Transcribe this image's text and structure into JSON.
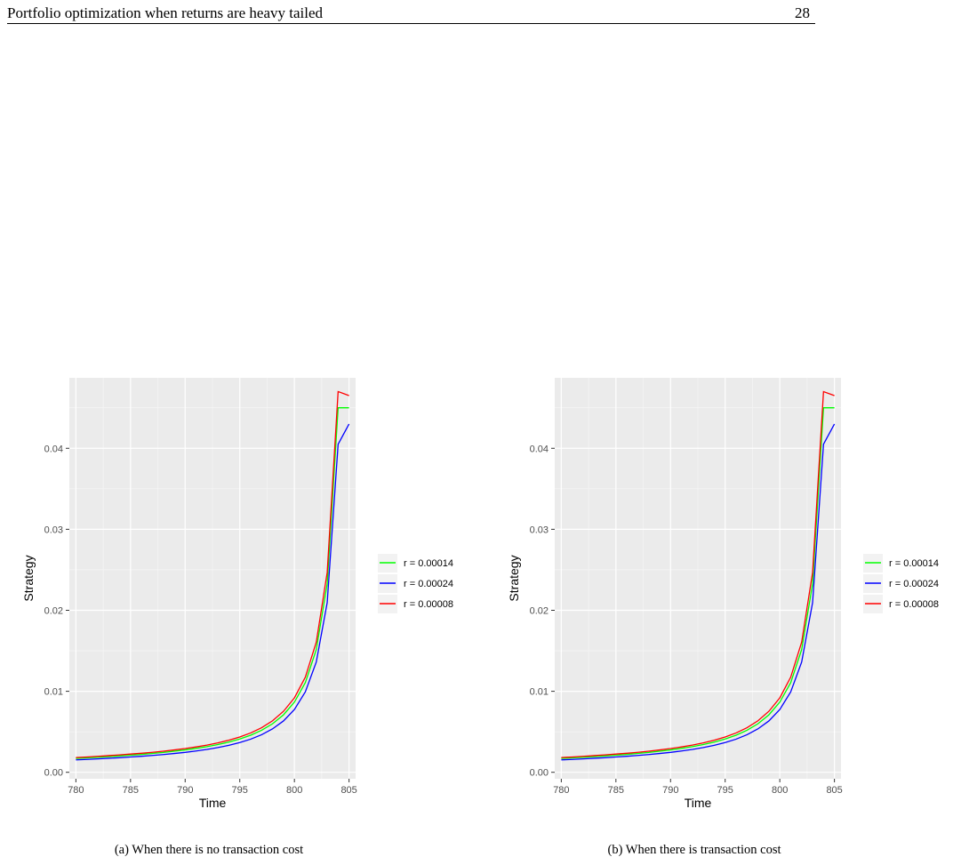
{
  "page": {
    "running_title": "Portfolio optimization when returns are heavy tailed",
    "page_number": "28"
  },
  "captions": [
    "(a) When there is no transaction cost",
    "(b) When there is transaction cost"
  ],
  "chart_data": [
    {
      "type": "line",
      "xlabel": "Time",
      "ylabel": "Strategy",
      "xlim": [
        779.4,
        805.6
      ],
      "ylim": [
        -0.0008,
        0.0487
      ],
      "xticks": [
        780,
        785,
        790,
        795,
        800,
        805
      ],
      "xtick_labels": [
        "780",
        "785",
        "790",
        "795",
        "800",
        "805"
      ],
      "yticks": [
        0.0,
        0.01,
        0.02,
        0.03,
        0.04
      ],
      "ytick_labels": [
        "0.00",
        "0.01",
        "0.02",
        "0.03",
        "0.04"
      ],
      "grid": true,
      "legend_position": "right",
      "x": [
        780,
        781,
        782,
        783,
        784,
        785,
        786,
        787,
        788,
        789,
        790,
        791,
        792,
        793,
        794,
        795,
        796,
        797,
        798,
        799,
        800,
        801,
        802,
        803,
        804,
        805
      ],
      "series": [
        {
          "name": "r = 0.00014",
          "color": "#00ff00",
          "values": [
            0.00171,
            0.00178,
            0.00185,
            0.00193,
            0.00202,
            0.00211,
            0.00221,
            0.00233,
            0.00245,
            0.0026,
            0.00276,
            0.00295,
            0.00317,
            0.00342,
            0.00373,
            0.00411,
            0.00458,
            0.00519,
            0.00599,
            0.00709,
            0.00866,
            0.01107,
            0.01515,
            0.02326,
            0.045,
            0.045
          ]
        },
        {
          "name": "r = 0.00024",
          "color": "#0000ff",
          "values": [
            0.00153,
            0.00159,
            0.00166,
            0.00173,
            0.0018,
            0.00189,
            0.00198,
            0.00208,
            0.00219,
            0.00232,
            0.00246,
            0.00263,
            0.00282,
            0.00305,
            0.00333,
            0.00367,
            0.00409,
            0.00464,
            0.00536,
            0.00634,
            0.00775,
            0.00993,
            0.01361,
            0.02094,
            0.0405,
            0.043
          ]
        },
        {
          "name": "r = 0.00008",
          "color": "#ff0000",
          "values": [
            0.00182,
            0.00189,
            0.00197,
            0.00206,
            0.00215,
            0.00225,
            0.00235,
            0.00247,
            0.0026,
            0.00276,
            0.00293,
            0.00313,
            0.00336,
            0.00363,
            0.00396,
            0.00436,
            0.00486,
            0.0055,
            0.00636,
            0.00753,
            0.00919,
            0.01175,
            0.01607,
            0.02467,
            0.047,
            0.0465
          ]
        }
      ]
    },
    {
      "type": "line",
      "xlabel": "Time",
      "ylabel": "Strategy",
      "xlim": [
        779.4,
        805.6
      ],
      "ylim": [
        -0.0008,
        0.0487
      ],
      "xticks": [
        780,
        785,
        790,
        795,
        800,
        805
      ],
      "xtick_labels": [
        "780",
        "785",
        "790",
        "795",
        "800",
        "805"
      ],
      "yticks": [
        0.0,
        0.01,
        0.02,
        0.03,
        0.04
      ],
      "ytick_labels": [
        "0.00",
        "0.01",
        "0.02",
        "0.03",
        "0.04"
      ],
      "grid": true,
      "legend_position": "right",
      "x": [
        780,
        781,
        782,
        783,
        784,
        785,
        786,
        787,
        788,
        789,
        790,
        791,
        792,
        793,
        794,
        795,
        796,
        797,
        798,
        799,
        800,
        801,
        802,
        803,
        804,
        805
      ],
      "series": [
        {
          "name": "r = 0.00014",
          "color": "#00ff00",
          "values": [
            0.00171,
            0.00178,
            0.00185,
            0.00193,
            0.00202,
            0.00211,
            0.00221,
            0.00233,
            0.00245,
            0.0026,
            0.00276,
            0.00295,
            0.00317,
            0.00342,
            0.00373,
            0.00411,
            0.00458,
            0.00519,
            0.00599,
            0.00709,
            0.00866,
            0.01107,
            0.01515,
            0.02326,
            0.045,
            0.045
          ]
        },
        {
          "name": "r = 0.00024",
          "color": "#0000ff",
          "values": [
            0.00153,
            0.00159,
            0.00166,
            0.00173,
            0.0018,
            0.00189,
            0.00198,
            0.00208,
            0.00219,
            0.00232,
            0.00246,
            0.00263,
            0.00282,
            0.00305,
            0.00333,
            0.00367,
            0.00409,
            0.00464,
            0.00536,
            0.00634,
            0.00775,
            0.00993,
            0.01361,
            0.02094,
            0.0405,
            0.043
          ]
        },
        {
          "name": "r = 0.00008",
          "color": "#ff0000",
          "values": [
            0.00182,
            0.00189,
            0.00197,
            0.00206,
            0.00215,
            0.00225,
            0.00235,
            0.00247,
            0.0026,
            0.00276,
            0.00293,
            0.00313,
            0.00336,
            0.00363,
            0.00396,
            0.00436,
            0.00486,
            0.0055,
            0.00636,
            0.00753,
            0.00919,
            0.01175,
            0.01607,
            0.02467,
            0.047,
            0.0465
          ]
        }
      ]
    }
  ]
}
